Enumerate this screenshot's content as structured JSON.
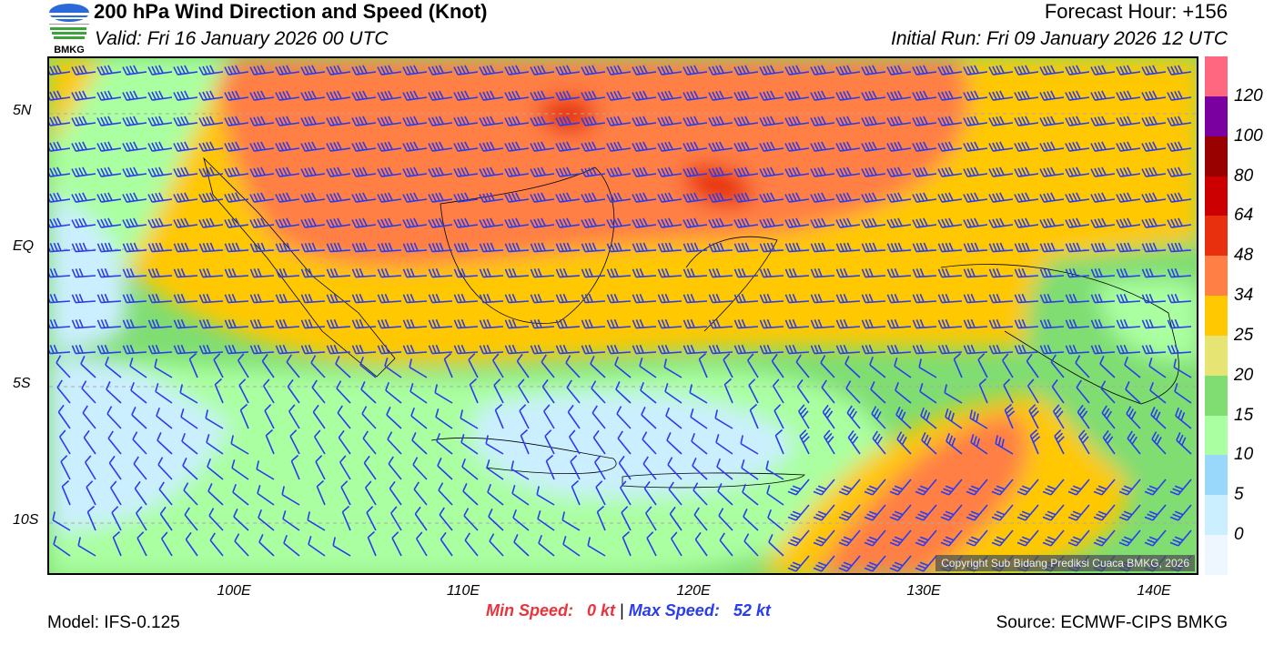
{
  "header": {
    "title": "200 hPa Wind Direction and Speed (Knot)",
    "valid": "Valid: Fri 16 January 2026 00 UTC",
    "forecast_hour": "Forecast Hour: +156",
    "initial_run": "Initial Run: Fri 09 January 2026 12 UTC",
    "logo_text": "BMKG"
  },
  "axes": {
    "lat_labels": [
      "5N",
      "EQ",
      "5S",
      "10S"
    ],
    "lon_labels": [
      "100E",
      "110E",
      "120E",
      "130E",
      "140E"
    ]
  },
  "colorbar": {
    "labels": [
      "120",
      "100",
      "80",
      "64",
      "48",
      "34",
      "25",
      "20",
      "15",
      "10",
      "5",
      "0"
    ],
    "colors": [
      "#ff6680",
      "#7a00a0",
      "#990000",
      "#cc0000",
      "#e8300f",
      "#ff7f45",
      "#ffc800",
      "#e6e472",
      "#7fdd72",
      "#aaffa0",
      "#99d8fa",
      "#ccefff",
      "#eef7ff"
    ]
  },
  "map": {
    "copyright": "Copyright Sub Bidang Prediksi Cuaca BMKG, 2026"
  },
  "footer": {
    "model": "Model: IFS-0.125",
    "min_label": "Min Speed:",
    "min_value": "0 kt",
    "separator": "|",
    "max_label": "Max Speed:",
    "max_value": "52 kt",
    "source": "Source: ECMWF-CIPS BMKG"
  },
  "accent": {
    "min": "#e8343a",
    "max": "#2a3cf0"
  }
}
